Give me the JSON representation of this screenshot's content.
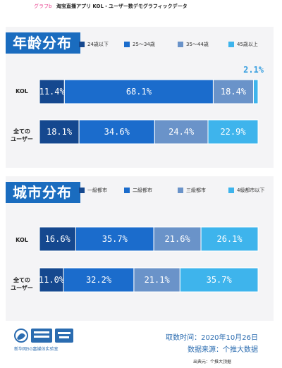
{
  "header": {
    "tag": "グラフb",
    "title": "淘宝直播アプリ  KOL・ユーザー数デモグラフィックデータ"
  },
  "sections": {
    "age": {
      "title": "年龄分布"
    },
    "city": {
      "title": "城市分布"
    }
  },
  "footer": {
    "time": "取数时间：2020年10月26日",
    "source": "数据来源：个推大数据",
    "note": "出典元：个推大顶据",
    "logo_text": "新华网5G富媒体实验室"
  },
  "chart_data": [
    {
      "type": "bar",
      "stacked": true,
      "orientation": "horizontal",
      "title": "年龄分布",
      "categories": [
        "KOL",
        "全ての\nユーザー"
      ],
      "series": [
        {
          "name": "24歳以下",
          "color": "#15488f",
          "values": [
            11.4,
            18.1
          ]
        },
        {
          "name": "25～34歳",
          "color": "#1b6ccc",
          "values": [
            68.1,
            34.6
          ]
        },
        {
          "name": "35～44歳",
          "color": "#6a93c9",
          "values": [
            18.4,
            24.4
          ]
        },
        {
          "name": "45歳以上",
          "color": "#3eb4ec",
          "values": [
            2.1,
            22.9
          ]
        }
      ],
      "labels": [
        [
          "11.4%",
          "18.1%"
        ],
        [
          "68.1%",
          "34.6%"
        ],
        [
          "18.4%",
          "24.4%"
        ],
        [
          "2.1%",
          "22.9%"
        ]
      ],
      "legend": "top",
      "xlim": [
        0,
        100
      ]
    },
    {
      "type": "bar",
      "stacked": true,
      "orientation": "horizontal",
      "title": "城市分布",
      "categories": [
        "KOL",
        "全ての\nユーザー"
      ],
      "series": [
        {
          "name": "一級都市",
          "color": "#15488f",
          "values": [
            16.6,
            11.0
          ]
        },
        {
          "name": "二級都市",
          "color": "#1b6ccc",
          "values": [
            35.7,
            32.2
          ]
        },
        {
          "name": "三級都市",
          "color": "#6a93c9",
          "values": [
            21.6,
            21.1
          ]
        },
        {
          "name": "4級都市以下",
          "color": "#3eb4ec",
          "values": [
            26.1,
            35.7
          ]
        }
      ],
      "labels": [
        [
          "16.6%",
          "11.0%"
        ],
        [
          "35.7%",
          "32.2%"
        ],
        [
          "21.6%",
          "21.1%"
        ],
        [
          "26.1%",
          "35.7%"
        ]
      ],
      "legend": "top",
      "xlim": [
        0,
        100
      ]
    }
  ]
}
